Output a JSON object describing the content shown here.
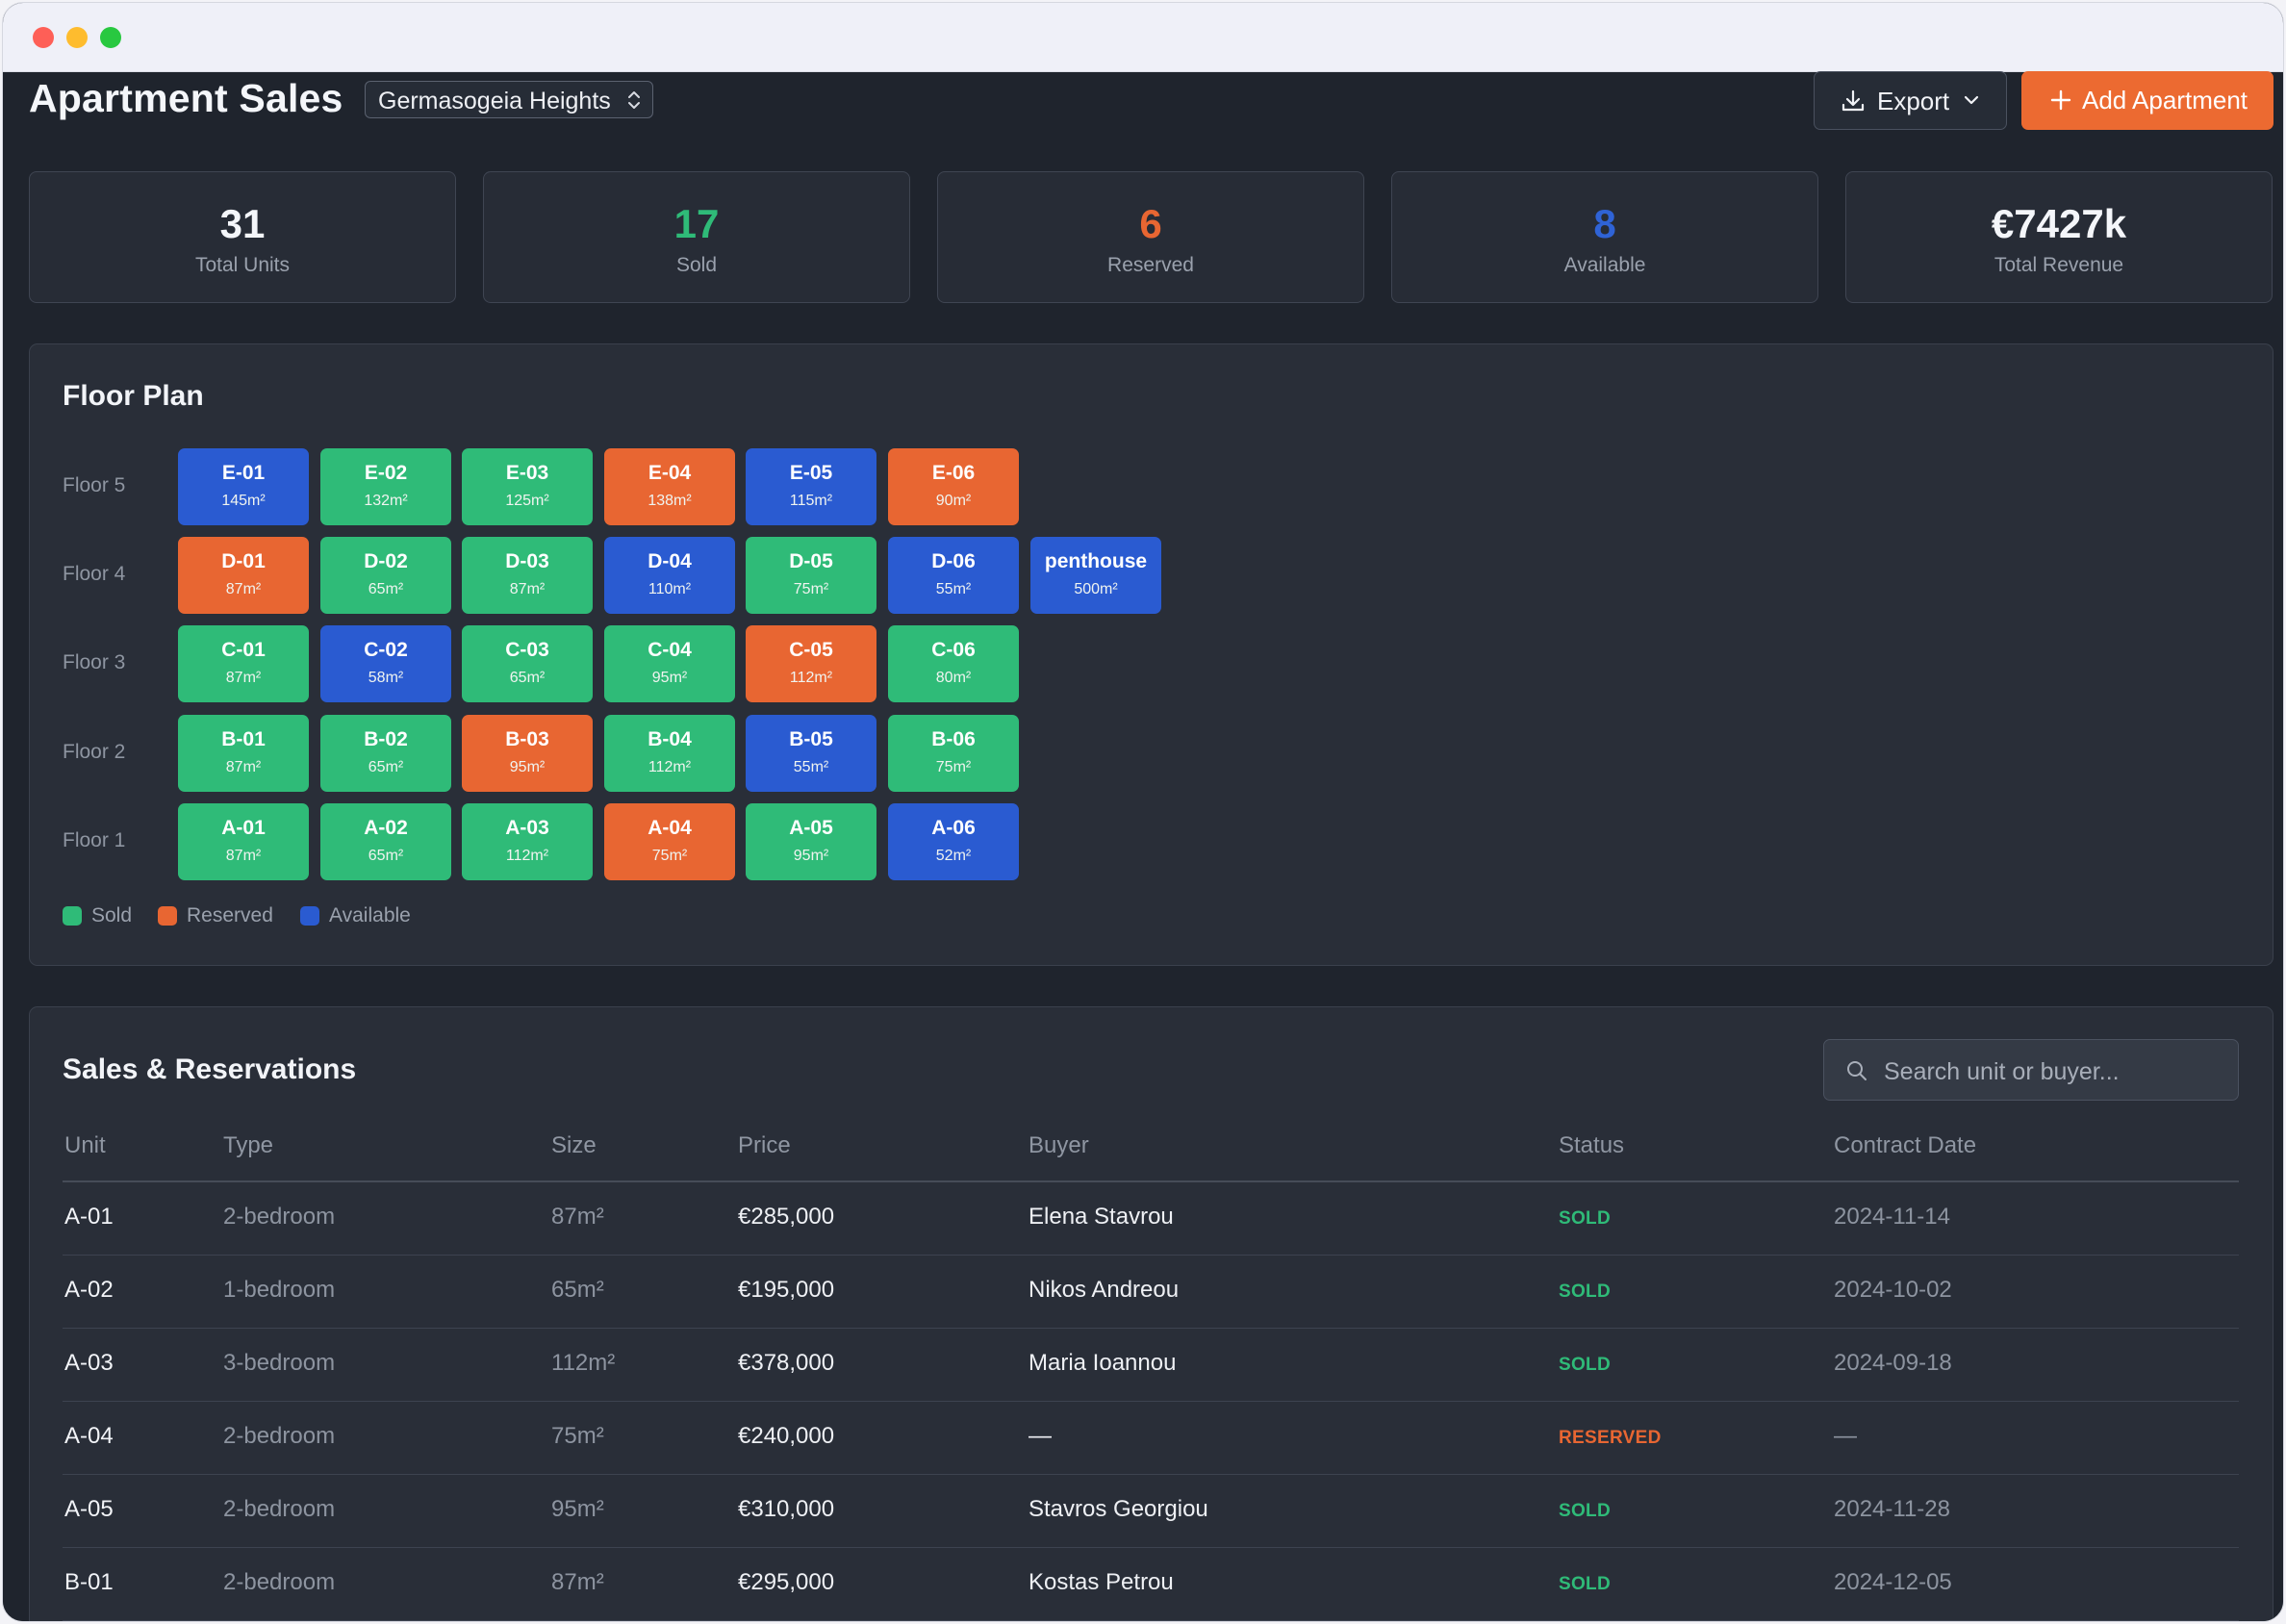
{
  "header": {
    "title": "Apartment Sales",
    "project": "Germasogeia Heights",
    "export_label": "Export",
    "add_label": "Add Apartment"
  },
  "stats": [
    {
      "value": "31",
      "label": "Total Units",
      "color": "#f4f6fa"
    },
    {
      "value": "17",
      "label": "Sold",
      "color": "#2fbb78"
    },
    {
      "value": "6",
      "label": "Reserved",
      "color": "#e86632"
    },
    {
      "value": "8",
      "label": "Available",
      "color": "#2f63d6"
    },
    {
      "value": "€7427k",
      "label": "Total Revenue",
      "color": "#f4f6fa"
    }
  ],
  "floor_plan": {
    "title": "Floor Plan",
    "floors": [
      {
        "label": "Floor 5",
        "units": [
          {
            "code": "E-01",
            "size": "145m²",
            "status": "available"
          },
          {
            "code": "E-02",
            "size": "132m²",
            "status": "sold"
          },
          {
            "code": "E-03",
            "size": "125m²",
            "status": "sold"
          },
          {
            "code": "E-04",
            "size": "138m²",
            "status": "reserved"
          },
          {
            "code": "E-05",
            "size": "115m²",
            "status": "available"
          },
          {
            "code": "E-06",
            "size": "90m²",
            "status": "reserved"
          }
        ]
      },
      {
        "label": "Floor 4",
        "units": [
          {
            "code": "D-01",
            "size": "87m²",
            "status": "reserved"
          },
          {
            "code": "D-02",
            "size": "65m²",
            "status": "sold"
          },
          {
            "code": "D-03",
            "size": "87m²",
            "status": "sold"
          },
          {
            "code": "D-04",
            "size": "110m²",
            "status": "available"
          },
          {
            "code": "D-05",
            "size": "75m²",
            "status": "sold"
          },
          {
            "code": "D-06",
            "size": "55m²",
            "status": "available"
          },
          {
            "code": "penthouse",
            "size": "500m²",
            "status": "available"
          }
        ]
      },
      {
        "label": "Floor 3",
        "units": [
          {
            "code": "C-01",
            "size": "87m²",
            "status": "sold"
          },
          {
            "code": "C-02",
            "size": "58m²",
            "status": "available"
          },
          {
            "code": "C-03",
            "size": "65m²",
            "status": "sold"
          },
          {
            "code": "C-04",
            "size": "95m²",
            "status": "sold"
          },
          {
            "code": "C-05",
            "size": "112m²",
            "status": "reserved"
          },
          {
            "code": "C-06",
            "size": "80m²",
            "status": "sold"
          }
        ]
      },
      {
        "label": "Floor 2",
        "units": [
          {
            "code": "B-01",
            "size": "87m²",
            "status": "sold"
          },
          {
            "code": "B-02",
            "size": "65m²",
            "status": "sold"
          },
          {
            "code": "B-03",
            "size": "95m²",
            "status": "reserved"
          },
          {
            "code": "B-04",
            "size": "112m²",
            "status": "sold"
          },
          {
            "code": "B-05",
            "size": "55m²",
            "status": "available"
          },
          {
            "code": "B-06",
            "size": "75m²",
            "status": "sold"
          }
        ]
      },
      {
        "label": "Floor 1",
        "units": [
          {
            "code": "A-01",
            "size": "87m²",
            "status": "sold"
          },
          {
            "code": "A-02",
            "size": "65m²",
            "status": "sold"
          },
          {
            "code": "A-03",
            "size": "112m²",
            "status": "sold"
          },
          {
            "code": "A-04",
            "size": "75m²",
            "status": "reserved"
          },
          {
            "code": "A-05",
            "size": "95m²",
            "status": "sold"
          },
          {
            "code": "A-06",
            "size": "52m²",
            "status": "available"
          }
        ]
      }
    ],
    "legend": [
      {
        "label": "Sold",
        "color": "#2fbb78"
      },
      {
        "label": "Reserved",
        "color": "#e86632"
      },
      {
        "label": "Available",
        "color": "#2a5bd1"
      }
    ]
  },
  "sales": {
    "title": "Sales & Reservations",
    "search_placeholder": "Search unit or buyer...",
    "columns": [
      "Unit",
      "Type",
      "Size",
      "Price",
      "Buyer",
      "Status",
      "Contract Date"
    ],
    "rows": [
      {
        "unit": "A-01",
        "type": "2-bedroom",
        "size": "87m²",
        "price": "€285,000",
        "buyer": "Elena Stavrou",
        "status": "SOLD",
        "date": "2024-11-14"
      },
      {
        "unit": "A-02",
        "type": "1-bedroom",
        "size": "65m²",
        "price": "€195,000",
        "buyer": "Nikos Andreou",
        "status": "SOLD",
        "date": "2024-10-02"
      },
      {
        "unit": "A-03",
        "type": "3-bedroom",
        "size": "112m²",
        "price": "€378,000",
        "buyer": "Maria Ioannou",
        "status": "SOLD",
        "date": "2024-09-18"
      },
      {
        "unit": "A-04",
        "type": "2-bedroom",
        "size": "75m²",
        "price": "€240,000",
        "buyer": "—",
        "status": "RESERVED",
        "date": "—"
      },
      {
        "unit": "A-05",
        "type": "2-bedroom",
        "size": "95m²",
        "price": "€310,000",
        "buyer": "Stavros Georgiou",
        "status": "SOLD",
        "date": "2024-11-28"
      },
      {
        "unit": "B-01",
        "type": "2-bedroom",
        "size": "87m²",
        "price": "€295,000",
        "buyer": "Kostas Petrou",
        "status": "SOLD",
        "date": "2024-12-05"
      }
    ]
  }
}
